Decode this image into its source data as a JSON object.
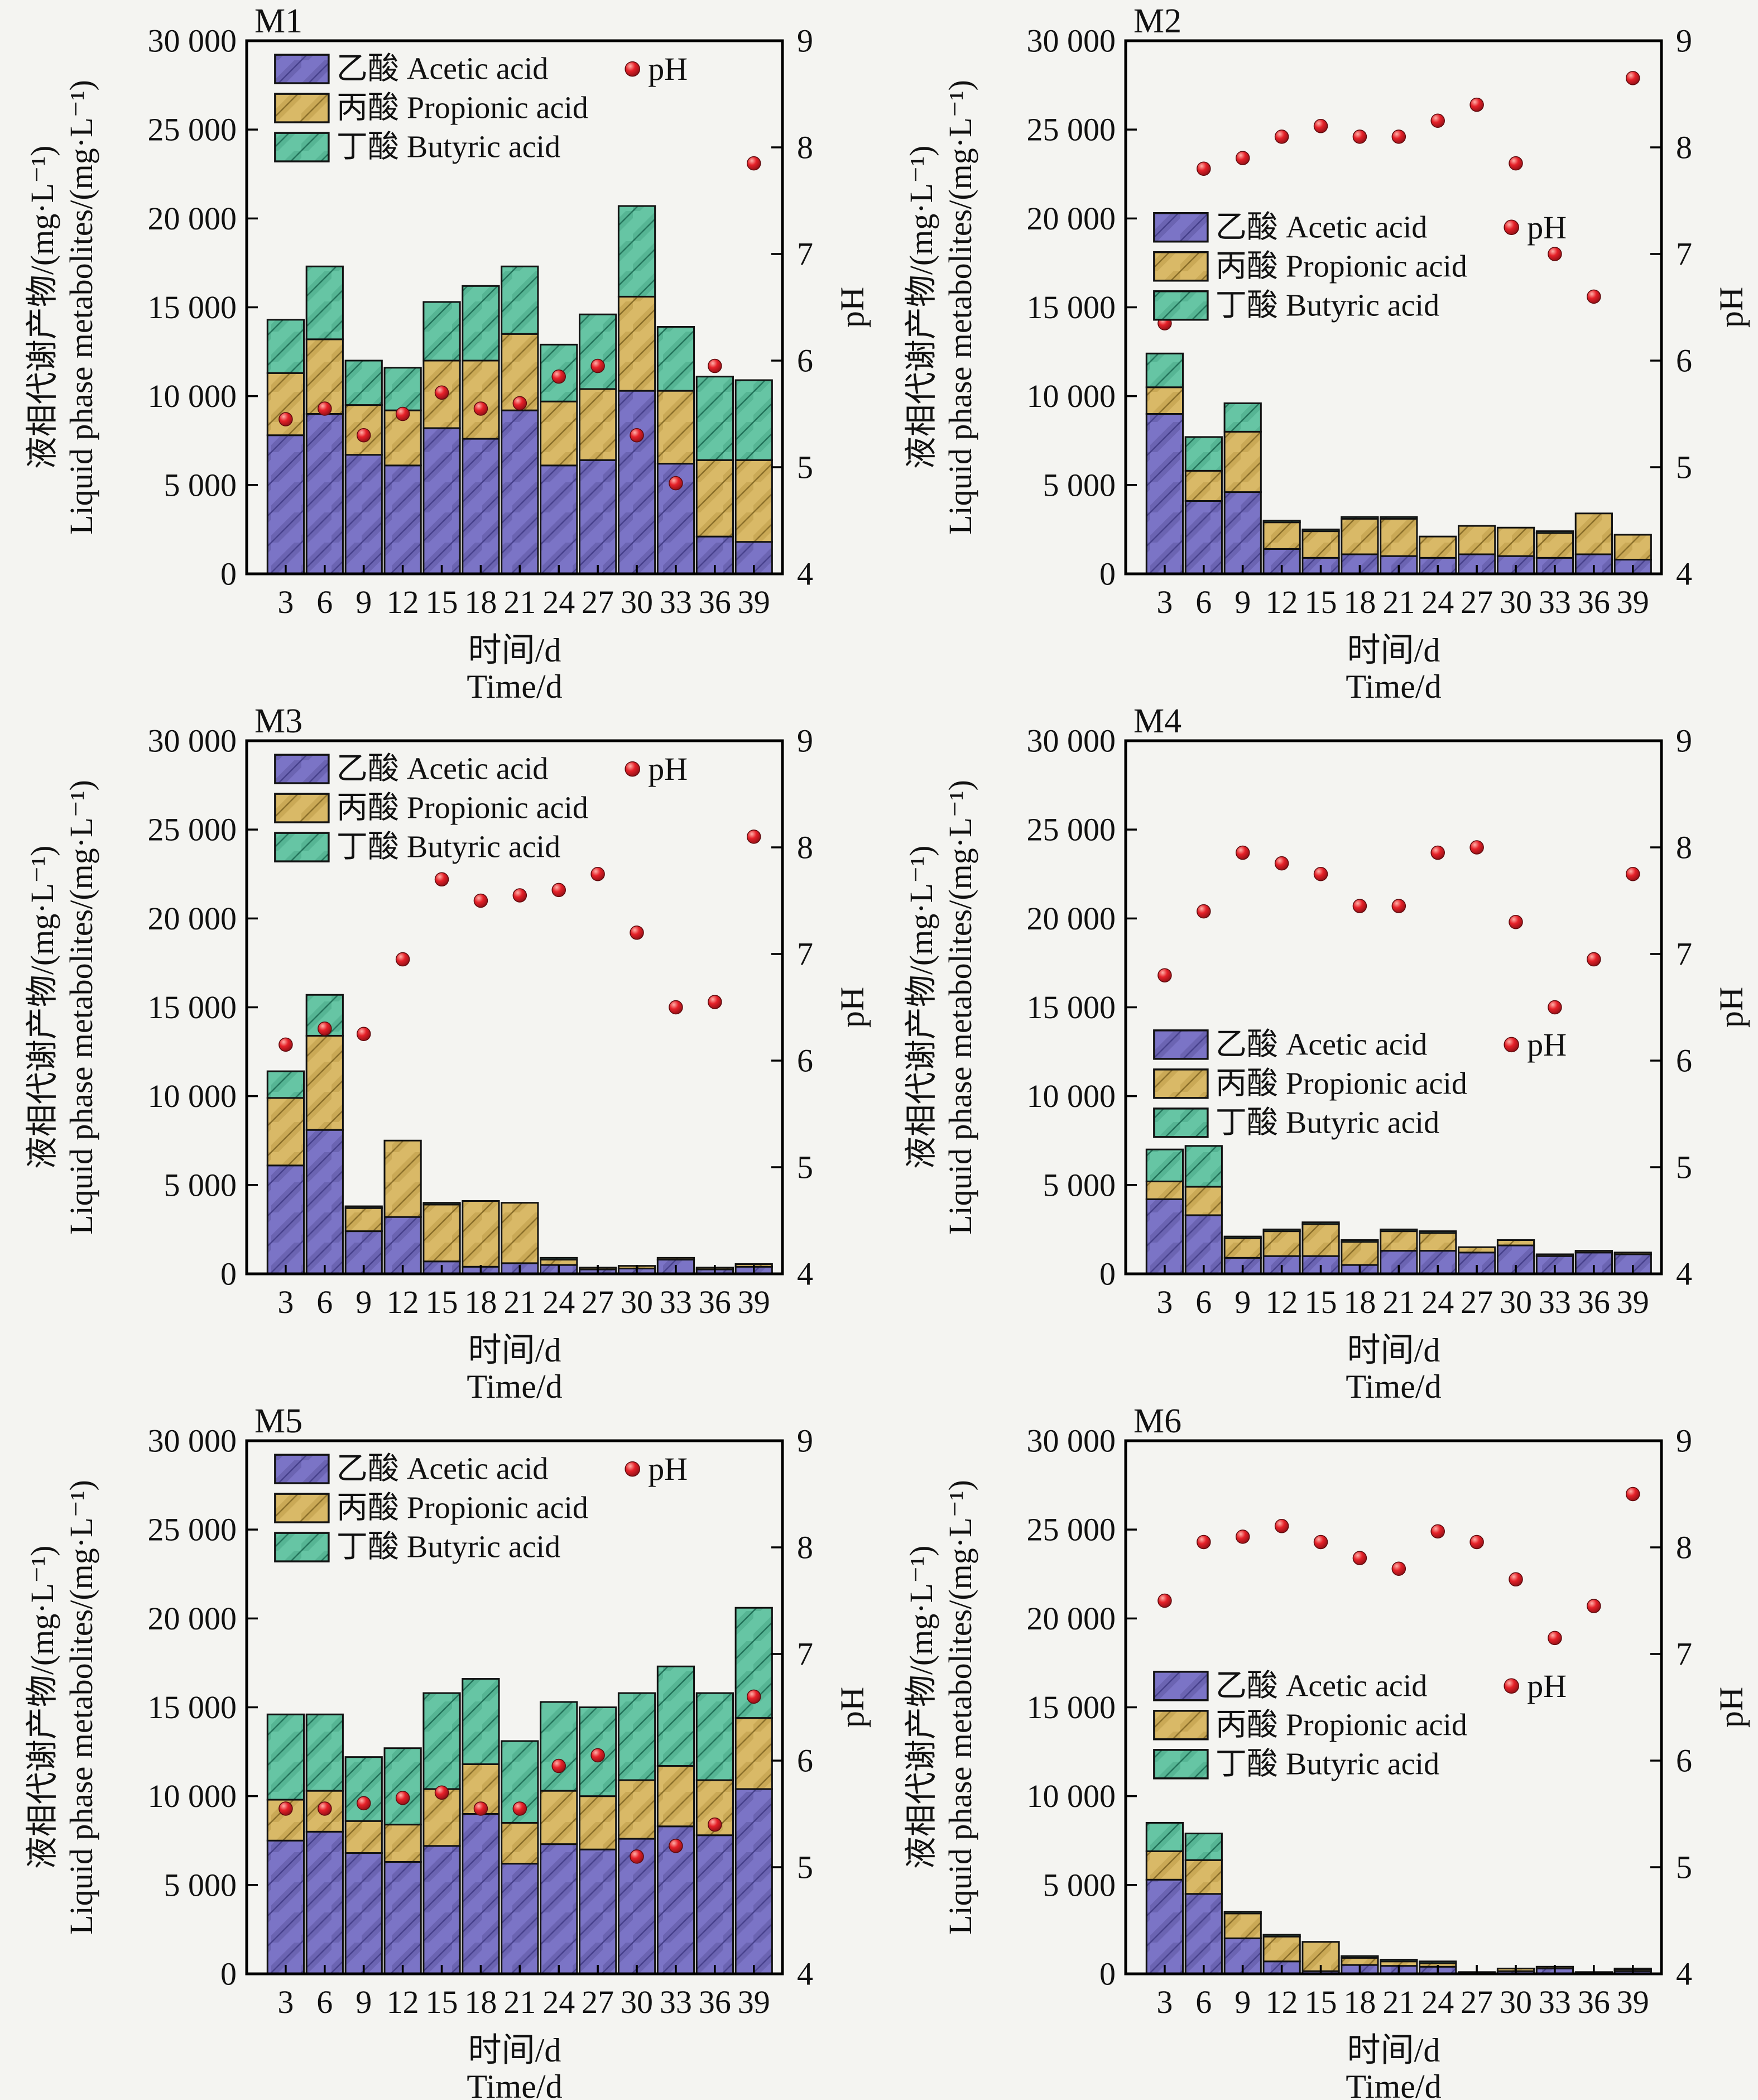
{
  "figure": {
    "background": "#f4f4f1",
    "columns": 2,
    "rows": 3
  },
  "axes": {
    "y_left_label_zh": "液相代谢产物/(mg·L⁻¹)",
    "y_left_label_en": "Liquid phase metabolites/(mg·L⁻¹)",
    "x_label_zh": "时间/d",
    "x_label_en": "Time/d",
    "y_right_label": "pH",
    "y_left_ticks": [
      "0",
      "5 000",
      "10 000",
      "15 000",
      "20 000",
      "25 000",
      "30 000"
    ],
    "y_left_tick_values": [
      0,
      5000,
      10000,
      15000,
      20000,
      25000,
      30000
    ],
    "y_left_max": 30000,
    "y_right_ticks": [
      "4",
      "5",
      "6",
      "7",
      "8",
      "9"
    ],
    "y_right_tick_values": [
      4,
      5,
      6,
      7,
      8,
      9
    ],
    "y_right_min": 4,
    "y_right_max": 9
  },
  "legend": {
    "items": [
      {
        "key": "acetic",
        "label": "乙酸 Acetic acid",
        "color": "#7b74c6",
        "band": "#3f3a7e",
        "line": "#47418c"
      },
      {
        "key": "propionic",
        "label": "丙酸 Propionic acid",
        "color": "#d9b967",
        "band": "#a07f2c",
        "line": "#8a6f2a"
      },
      {
        "key": "butyric",
        "label": "丁酸 Butyric acid",
        "color": "#66c5a4",
        "band": "#2c8a6b",
        "line": "#23735a"
      }
    ],
    "ph": {
      "label": "pH",
      "color": "#e62129",
      "edge": "#600a0e",
      "gradient": [
        "#ffb0a8",
        "#e62129",
        "#8e0f15"
      ]
    },
    "bar_edge": "#121212"
  },
  "chart_data": [
    {
      "type": "bar",
      "title": "M1",
      "grid": false,
      "categories": [
        3,
        6,
        9,
        12,
        15,
        18,
        21,
        24,
        27,
        30,
        33,
        36,
        39
      ],
      "xlabel": "时间/d Time/d",
      "ylabel": "液相代谢产物 Liquid phase metabolites (mg·L⁻¹)",
      "ylim": [
        0,
        30000
      ],
      "ph_ylim": [
        4,
        9
      ],
      "series": [
        {
          "name": "乙酸 Acetic acid",
          "values": [
            7800,
            9000,
            6700,
            6100,
            8200,
            7600,
            9200,
            6100,
            6400,
            10300,
            6200,
            2100,
            1800
          ]
        },
        {
          "name": "丙酸 Propionic acid",
          "values": [
            3500,
            4200,
            2800,
            3100,
            3800,
            4400,
            4300,
            3600,
            4000,
            5300,
            4100,
            4300,
            4600
          ]
        },
        {
          "name": "丁酸 Butyric acid",
          "values": [
            3000,
            4100,
            2500,
            2400,
            3300,
            4200,
            3800,
            3200,
            4200,
            5100,
            3600,
            4700,
            4500
          ]
        }
      ],
      "ph_series": {
        "name": "pH",
        "values": [
          5.45,
          5.55,
          5.3,
          5.5,
          5.7,
          5.55,
          5.6,
          5.85,
          5.95,
          5.3,
          4.85,
          5.95,
          7.85
        ]
      },
      "legend_row1_frac": 0.053,
      "legend_x_frac": 0.053,
      "ph_legend_x_frac": 0.72
    },
    {
      "type": "bar",
      "title": "M2",
      "grid": false,
      "categories": [
        3,
        6,
        9,
        12,
        15,
        18,
        21,
        24,
        27,
        30,
        33,
        36,
        39
      ],
      "xlabel": "时间/d Time/d",
      "ylabel": "液相代谢产物 Liquid phase metabolites (mg·L⁻¹)",
      "ylim": [
        0,
        30000
      ],
      "ph_ylim": [
        4,
        9
      ],
      "series": [
        {
          "name": "乙酸 Acetic acid",
          "values": [
            9000,
            4100,
            4600,
            1400,
            900,
            1100,
            1000,
            900,
            1100,
            1000,
            900,
            1100,
            800
          ]
        },
        {
          "name": "丙酸 Propionic acid",
          "values": [
            1500,
            1700,
            3400,
            1500,
            1500,
            2000,
            2100,
            1200,
            1600,
            1600,
            1400,
            2300,
            1400
          ]
        },
        {
          "name": "丁酸 Butyric acid",
          "values": [
            1900,
            1900,
            1600,
            100,
            100,
            100,
            100,
            0,
            0,
            0,
            100,
            0,
            0
          ]
        }
      ],
      "ph_series": {
        "name": "pH",
        "values": [
          6.35,
          7.8,
          7.9,
          8.1,
          8.2,
          8.1,
          8.1,
          8.25,
          8.4,
          7.85,
          7.0,
          6.6,
          8.65
        ]
      },
      "legend_row1_frac": 0.35,
      "legend_x_frac": 0.053,
      "ph_legend_x_frac": 0.72
    },
    {
      "type": "bar",
      "title": "M3",
      "grid": false,
      "categories": [
        3,
        6,
        9,
        12,
        15,
        18,
        21,
        24,
        27,
        30,
        33,
        36,
        39
      ],
      "xlabel": "时间/d Time/d",
      "ylabel": "液相代谢产物 Liquid phase metabolites (mg·L⁻¹)",
      "ylim": [
        0,
        30000
      ],
      "ph_ylim": [
        4,
        9
      ],
      "series": [
        {
          "name": "乙酸 Acetic acid",
          "values": [
            6100,
            8100,
            2400,
            3200,
            700,
            400,
            600,
            500,
            250,
            300,
            800,
            250,
            400
          ]
        },
        {
          "name": "丙酸 Propionic acid",
          "values": [
            3800,
            5300,
            1300,
            4300,
            3200,
            3700,
            3400,
            300,
            100,
            150,
            100,
            100,
            150
          ]
        },
        {
          "name": "丁酸 Butyric acid",
          "values": [
            1500,
            2300,
            100,
            0,
            100,
            0,
            0,
            100,
            0,
            0,
            0,
            0,
            0
          ]
        }
      ],
      "ph_series": {
        "name": "pH",
        "values": [
          6.15,
          6.3,
          6.25,
          6.95,
          7.7,
          7.5,
          7.55,
          7.6,
          7.75,
          7.2,
          6.5,
          6.55,
          8.1
        ]
      },
      "legend_row1_frac": 0.053,
      "legend_x_frac": 0.053,
      "ph_legend_x_frac": 0.72
    },
    {
      "type": "bar",
      "title": "M4",
      "grid": false,
      "categories": [
        3,
        6,
        9,
        12,
        15,
        18,
        21,
        24,
        27,
        30,
        33,
        36,
        39
      ],
      "xlabel": "时间/d Time/d",
      "ylabel": "液相代谢产物 Liquid phase metabolites (mg·L⁻¹)",
      "ylim": [
        0,
        30000
      ],
      "ph_ylim": [
        4,
        9
      ],
      "series": [
        {
          "name": "乙酸 Acetic acid",
          "values": [
            4200,
            3300,
            900,
            1000,
            1000,
            500,
            1300,
            1300,
            1200,
            1600,
            1000,
            1200,
            1100
          ]
        },
        {
          "name": "丙酸 Propionic acid",
          "values": [
            1000,
            1600,
            1100,
            1400,
            1800,
            1300,
            1100,
            1000,
            300,
            300,
            100,
            100,
            100
          ]
        },
        {
          "name": "丁酸 Butyric acid",
          "values": [
            1800,
            2300,
            100,
            100,
            100,
            100,
            100,
            100,
            0,
            0,
            0,
            0,
            0
          ]
        }
      ],
      "ph_series": {
        "name": "pH",
        "values": [
          6.8,
          7.4,
          7.95,
          7.85,
          7.75,
          7.45,
          7.45,
          7.95,
          8.0,
          7.3,
          6.5,
          6.95,
          7.75
        ]
      },
      "legend_row1_frac": 0.57,
      "legend_x_frac": 0.053,
      "ph_legend_x_frac": 0.72
    },
    {
      "type": "bar",
      "title": "M5",
      "grid": false,
      "categories": [
        3,
        6,
        9,
        12,
        15,
        18,
        21,
        24,
        27,
        30,
        33,
        36,
        39
      ],
      "xlabel": "时间/d Time/d",
      "ylabel": "液相代谢产物 Liquid phase metabolites (mg·L⁻¹)",
      "ylim": [
        0,
        30000
      ],
      "ph_ylim": [
        4,
        9
      ],
      "series": [
        {
          "name": "乙酸 Acetic acid",
          "values": [
            7500,
            8000,
            6800,
            6300,
            7200,
            9000,
            6200,
            7300,
            7000,
            7600,
            8300,
            7800,
            10400
          ]
        },
        {
          "name": "丙酸 Propionic acid",
          "values": [
            2300,
            2300,
            1800,
            2100,
            3200,
            2800,
            2300,
            3000,
            3000,
            3300,
            3400,
            3100,
            4000
          ]
        },
        {
          "name": "丁酸 Butyric acid",
          "values": [
            4800,
            4300,
            3600,
            4300,
            5400,
            4800,
            4600,
            5000,
            5000,
            4900,
            5600,
            4900,
            6200
          ]
        }
      ],
      "ph_series": {
        "name": "pH",
        "values": [
          5.55,
          5.55,
          5.6,
          5.65,
          5.7,
          5.55,
          5.55,
          5.95,
          6.05,
          5.1,
          5.2,
          5.4,
          6.6
        ]
      },
      "legend_row1_frac": 0.053,
      "legend_x_frac": 0.053,
      "ph_legend_x_frac": 0.72
    },
    {
      "type": "bar",
      "title": "M6",
      "grid": false,
      "categories": [
        3,
        6,
        9,
        12,
        15,
        18,
        21,
        24,
        27,
        30,
        33,
        36,
        39
      ],
      "xlabel": "时间/d Time/d",
      "ylabel": "液相代谢产物 Liquid phase metabolites (mg·L⁻¹)",
      "ylim": [
        0,
        30000
      ],
      "ph_ylim": [
        4,
        9
      ],
      "series": [
        {
          "name": "乙酸 Acetic acid",
          "values": [
            5300,
            4500,
            2000,
            700,
            150,
            500,
            450,
            400,
            80,
            150,
            300,
            60,
            150
          ]
        },
        {
          "name": "丙酸 Propionic acid",
          "values": [
            1600,
            1900,
            1400,
            1400,
            1650,
            400,
            250,
            200,
            20,
            150,
            100,
            40,
            100
          ]
        },
        {
          "name": "丁酸 Butyric acid",
          "values": [
            1600,
            1500,
            100,
            100,
            0,
            100,
            100,
            100,
            0,
            0,
            0,
            0,
            50
          ]
        }
      ],
      "ph_series": {
        "name": "pH",
        "values": [
          7.5,
          8.05,
          8.1,
          8.2,
          8.05,
          7.9,
          7.8,
          8.15,
          8.05,
          7.7,
          7.15,
          7.45,
          8.5
        ]
      },
      "legend_row1_frac": 0.46,
      "legend_x_frac": 0.053,
      "ph_legend_x_frac": 0.72
    }
  ]
}
